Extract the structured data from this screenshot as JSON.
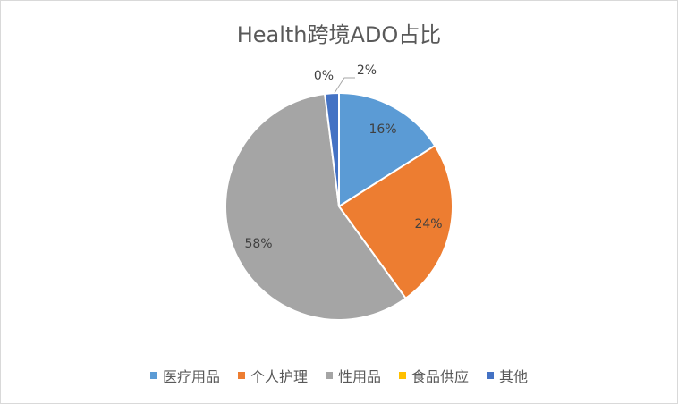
{
  "chart_data": {
    "type": "pie",
    "title": "Health跨境ADO占比",
    "categories": [
      "医疗用品",
      "个人护理",
      "性用品",
      "食品供应",
      "其他"
    ],
    "values": [
      16,
      24,
      58,
      0,
      2
    ],
    "labels": [
      "16%",
      "24%",
      "58%",
      "0%",
      "2%"
    ],
    "colors": [
      "#5B9BD5",
      "#ED7D31",
      "#A5A5A5",
      "#FFC000",
      "#4472C4"
    ],
    "legend_position": "bottom",
    "start_angle_deg": 0,
    "direction": "clockwise"
  }
}
